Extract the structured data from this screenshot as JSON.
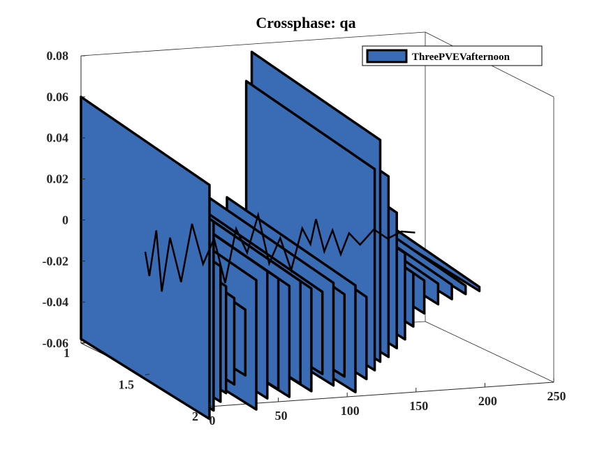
{
  "chart_data": {
    "type": "area",
    "view": "3d",
    "title": "Crossphase: qa",
    "xlabel": "",
    "ylabel": "",
    "zlabel": "",
    "x_ticks": [
      "0",
      "50",
      "100",
      "150",
      "200",
      "250"
    ],
    "y_ticks": [
      "1",
      "1.5",
      "2"
    ],
    "z_ticks": [
      "0.08",
      "0.06",
      "0.04",
      "0.02",
      "0",
      "-0.02",
      "-0.04",
      "-0.06"
    ],
    "xlim": [
      0,
      250
    ],
    "ylim": [
      1,
      2
    ],
    "zlim": [
      -0.06,
      0.08
    ],
    "legend": {
      "entries": [
        "ThreePVEVafternoon"
      ],
      "location": "top-right"
    },
    "series_color": "#3A6BB5",
    "edge_color": "#000000",
    "series": [
      {
        "name": "ThreePVEVafternoon",
        "slabs": [
          {
            "x": 0,
            "min": -0.058,
            "max": 0.06
          },
          {
            "x": 3,
            "min": -0.054,
            "max": 0.042
          },
          {
            "x": 8,
            "min": -0.05,
            "max": 0.02
          },
          {
            "x": 12,
            "min": -0.046,
            "max": 0.01
          },
          {
            "x": 18,
            "min": -0.042,
            "max": 0.004
          },
          {
            "x": 26,
            "min": -0.038,
            "max": -0.002
          },
          {
            "x": 34,
            "min": -0.055,
            "max": 0.012
          },
          {
            "x": 42,
            "min": -0.05,
            "max": 0.016
          },
          {
            "x": 50,
            "min": -0.046,
            "max": 0.012
          },
          {
            "x": 58,
            "min": -0.05,
            "max": 0.008
          },
          {
            "x": 66,
            "min": -0.044,
            "max": 0.01
          },
          {
            "x": 74,
            "min": -0.048,
            "max": 0.006
          },
          {
            "x": 82,
            "min": -0.04,
            "max": 0.004
          },
          {
            "x": 90,
            "min": -0.046,
            "max": 0.008
          },
          {
            "x": 98,
            "min": -0.042,
            "max": 0.002
          },
          {
            "x": 106,
            "min": -0.05,
            "max": 0.006
          },
          {
            "x": 114,
            "min": -0.044,
            "max": 0.0
          },
          {
            "x": 120,
            "min": -0.04,
            "max": 0.062
          },
          {
            "x": 124,
            "min": -0.036,
            "max": 0.076
          },
          {
            "x": 130,
            "min": -0.034,
            "max": 0.058
          },
          {
            "x": 136,
            "min": -0.03,
            "max": 0.04
          },
          {
            "x": 142,
            "min": -0.026,
            "max": 0.02
          },
          {
            "x": 148,
            "min": -0.02,
            "max": 0.01
          },
          {
            "x": 156,
            "min": -0.014,
            "max": 0.006
          },
          {
            "x": 166,
            "min": -0.01,
            "max": 0.004
          },
          {
            "x": 176,
            "min": -0.008,
            "max": 0.003
          },
          {
            "x": 186,
            "min": -0.006,
            "max": 0.002
          },
          {
            "x": 196,
            "min": -0.005,
            "max": 0.001
          }
        ],
        "profile": [
          0.0,
          -0.012,
          0.01,
          -0.02,
          0.006,
          -0.016,
          0.012,
          -0.008,
          0.004,
          -0.018,
          0.008,
          -0.004,
          0.014,
          -0.01,
          0.002,
          -0.014,
          0.006,
          -0.002,
          0.01,
          -0.006,
          0.004,
          -0.008,
          0.002,
          -0.004,
          0.003,
          -0.002,
          0.001,
          0.0
        ]
      }
    ]
  }
}
